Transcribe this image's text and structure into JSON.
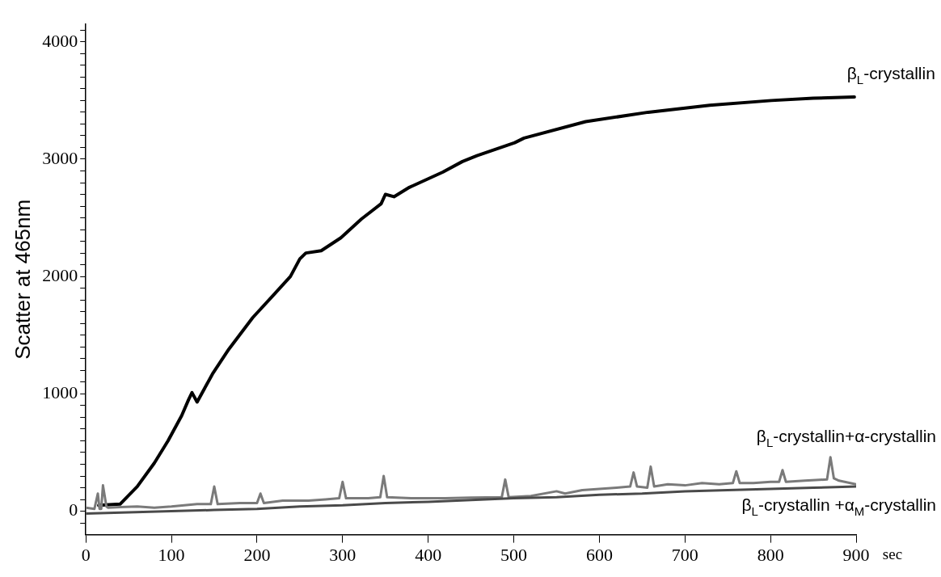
{
  "chart_data": {
    "type": "line",
    "xlabel": "sec",
    "ylabel": "Scatter at 465nm",
    "xlim": [
      0,
      900
    ],
    "xticks": [
      0,
      100,
      200,
      300,
      400,
      500,
      600,
      700,
      800,
      900
    ],
    "ylim": [
      -200,
      4150
    ],
    "yticks": [
      {
        "value": -100,
        "label": null
      },
      0,
      {
        "value": 100,
        "label": null
      },
      {
        "value": 200,
        "label": null
      },
      {
        "value": 300,
        "label": null
      },
      {
        "value": 400,
        "label": null
      },
      {
        "value": 500,
        "label": null
      },
      {
        "value": 600,
        "label": null
      },
      {
        "value": 700,
        "label": null
      },
      {
        "value": 800,
        "label": null
      },
      {
        "value": 900,
        "label": null
      },
      1000,
      {
        "value": 1100,
        "label": null
      },
      {
        "value": 1200,
        "label": null
      },
      {
        "value": 1300,
        "label": null
      },
      {
        "value": 1400,
        "label": null
      },
      {
        "value": 1500,
        "label": null
      },
      {
        "value": 1600,
        "label": null
      },
      {
        "value": 1700,
        "label": null
      },
      {
        "value": 1800,
        "label": null
      },
      {
        "value": 1900,
        "label": null
      },
      2000,
      {
        "value": 2100,
        "label": null
      },
      {
        "value": 2200,
        "label": null
      },
      {
        "value": 2300,
        "label": null
      },
      {
        "value": 2400,
        "label": null
      },
      {
        "value": 2500,
        "label": null
      },
      {
        "value": 2600,
        "label": null
      },
      {
        "value": 2700,
        "label": null
      },
      {
        "value": 2800,
        "label": null
      },
      {
        "value": 2900,
        "label": null
      },
      3000,
      {
        "value": 3100,
        "label": null
      },
      {
        "value": 3200,
        "label": null
      },
      {
        "value": 3300,
        "label": null
      },
      {
        "value": 3400,
        "label": null
      },
      {
        "value": 3500,
        "label": null
      },
      {
        "value": 3600,
        "label": null
      },
      {
        "value": 3700,
        "label": null
      },
      {
        "value": 3800,
        "label": null
      },
      {
        "value": 3900,
        "label": null
      },
      4000,
      {
        "value": 4100,
        "label": null
      }
    ],
    "grid": false,
    "legend": false,
    "marker": "none",
    "line_style": "solid",
    "series": [
      {
        "name": "β$_{L}$-crystallin",
        "color": "#000000",
        "x": [
          15,
          40,
          60,
          80,
          96,
          112,
          120,
          124,
          130,
          148,
          167,
          195,
          219,
          239,
          250,
          257,
          275,
          298,
          322,
          345,
          350,
          360,
          378,
          417,
          440,
          457,
          501,
          512,
          584,
          657,
          729,
          801,
          850,
          898
        ],
        "values": [
          50,
          60,
          210,
          410,
          600,
          815,
          950,
          1010,
          930,
          1170,
          1380,
          1650,
          1840,
          2000,
          2150,
          2200,
          2220,
          2330,
          2490,
          2620,
          2700,
          2680,
          2760,
          2890,
          2980,
          3030,
          3140,
          3180,
          3320,
          3400,
          3460,
          3500,
          3520,
          3530
        ]
      },
      {
        "name": "β$_{L}$-crystallin+α-crystallin",
        "color": "#7a7a7a",
        "x": [
          0,
          10,
          14,
          16,
          18,
          20,
          24,
          26,
          40,
          60,
          80,
          100,
          130,
          146,
          150,
          154,
          180,
          200,
          204,
          208,
          230,
          260,
          280,
          296,
          300,
          304,
          310,
          330,
          344,
          348,
          352,
          380,
          420,
          450,
          486,
          490,
          494,
          520,
          550,
          560,
          580,
          600,
          620,
          636,
          640,
          644,
          656,
          660,
          664,
          680,
          700,
          720,
          740,
          756,
          760,
          764,
          780,
          800,
          810,
          814,
          818,
          840,
          866,
          870,
          874,
          880,
          900
        ],
        "values": [
          30,
          20,
          150,
          20,
          20,
          220,
          40,
          30,
          35,
          40,
          30,
          40,
          60,
          60,
          210,
          60,
          70,
          70,
          150,
          70,
          90,
          90,
          100,
          110,
          250,
          110,
          110,
          110,
          120,
          300,
          120,
          110,
          110,
          115,
          120,
          270,
          120,
          130,
          170,
          150,
          180,
          190,
          200,
          210,
          330,
          210,
          200,
          380,
          210,
          230,
          220,
          240,
          230,
          240,
          340,
          240,
          240,
          250,
          250,
          350,
          250,
          260,
          270,
          460,
          280,
          260,
          230
        ]
      },
      {
        "name": "β$_{L}$-crystallin +α$_{M}$-crystallin",
        "color": "#4a4a4a",
        "x": [
          0,
          50,
          100,
          150,
          200,
          250,
          300,
          350,
          400,
          450,
          500,
          550,
          600,
          650,
          700,
          750,
          800,
          850,
          900
        ],
        "values": [
          -20,
          -10,
          0,
          10,
          20,
          40,
          50,
          70,
          80,
          95,
          110,
          120,
          140,
          150,
          170,
          180,
          190,
          200,
          210
        ]
      }
    ]
  }
}
